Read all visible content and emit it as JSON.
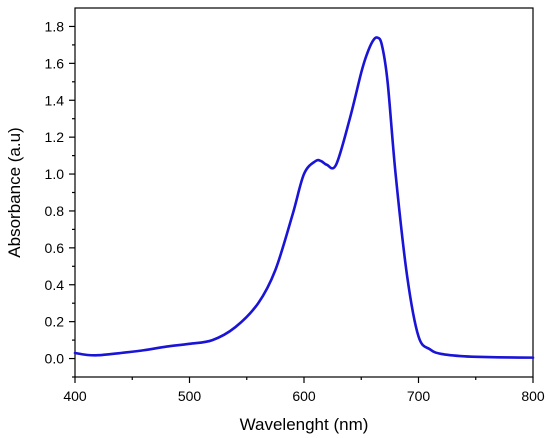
{
  "chart_data": {
    "type": "line",
    "title": "",
    "xlabel": "Wavelenght (nm)",
    "ylabel": "Absorbance (a.u)",
    "xlim": [
      400,
      800
    ],
    "ylim": [
      -0.1,
      1.9
    ],
    "x_ticks": [
      "400",
      "500",
      "600",
      "700",
      "800"
    ],
    "y_ticks": [
      "0.0",
      "0.2",
      "0.4",
      "0.6",
      "0.8",
      "1.0",
      "1.2",
      "1.4",
      "1.6",
      "1.8"
    ],
    "grid": false,
    "legend": "none",
    "line_color": "#1a14d6",
    "series": [
      {
        "x": [
          400,
          410,
          420,
          440,
          460,
          480,
          500,
          520,
          540,
          560,
          575,
          590,
          600,
          610,
          615,
          620,
          628,
          640,
          650,
          655,
          660,
          664,
          668,
          673,
          680,
          690,
          700,
          710,
          720,
          740,
          760,
          780,
          800
        ],
        "y": [
          0.03,
          0.02,
          0.018,
          0.03,
          0.045,
          0.065,
          0.08,
          0.1,
          0.17,
          0.3,
          0.48,
          0.78,
          1.0,
          1.07,
          1.07,
          1.05,
          1.05,
          1.3,
          1.55,
          1.65,
          1.72,
          1.74,
          1.7,
          1.5,
          1.0,
          0.45,
          0.12,
          0.05,
          0.025,
          0.012,
          0.008,
          0.006,
          0.005
        ]
      }
    ]
  }
}
